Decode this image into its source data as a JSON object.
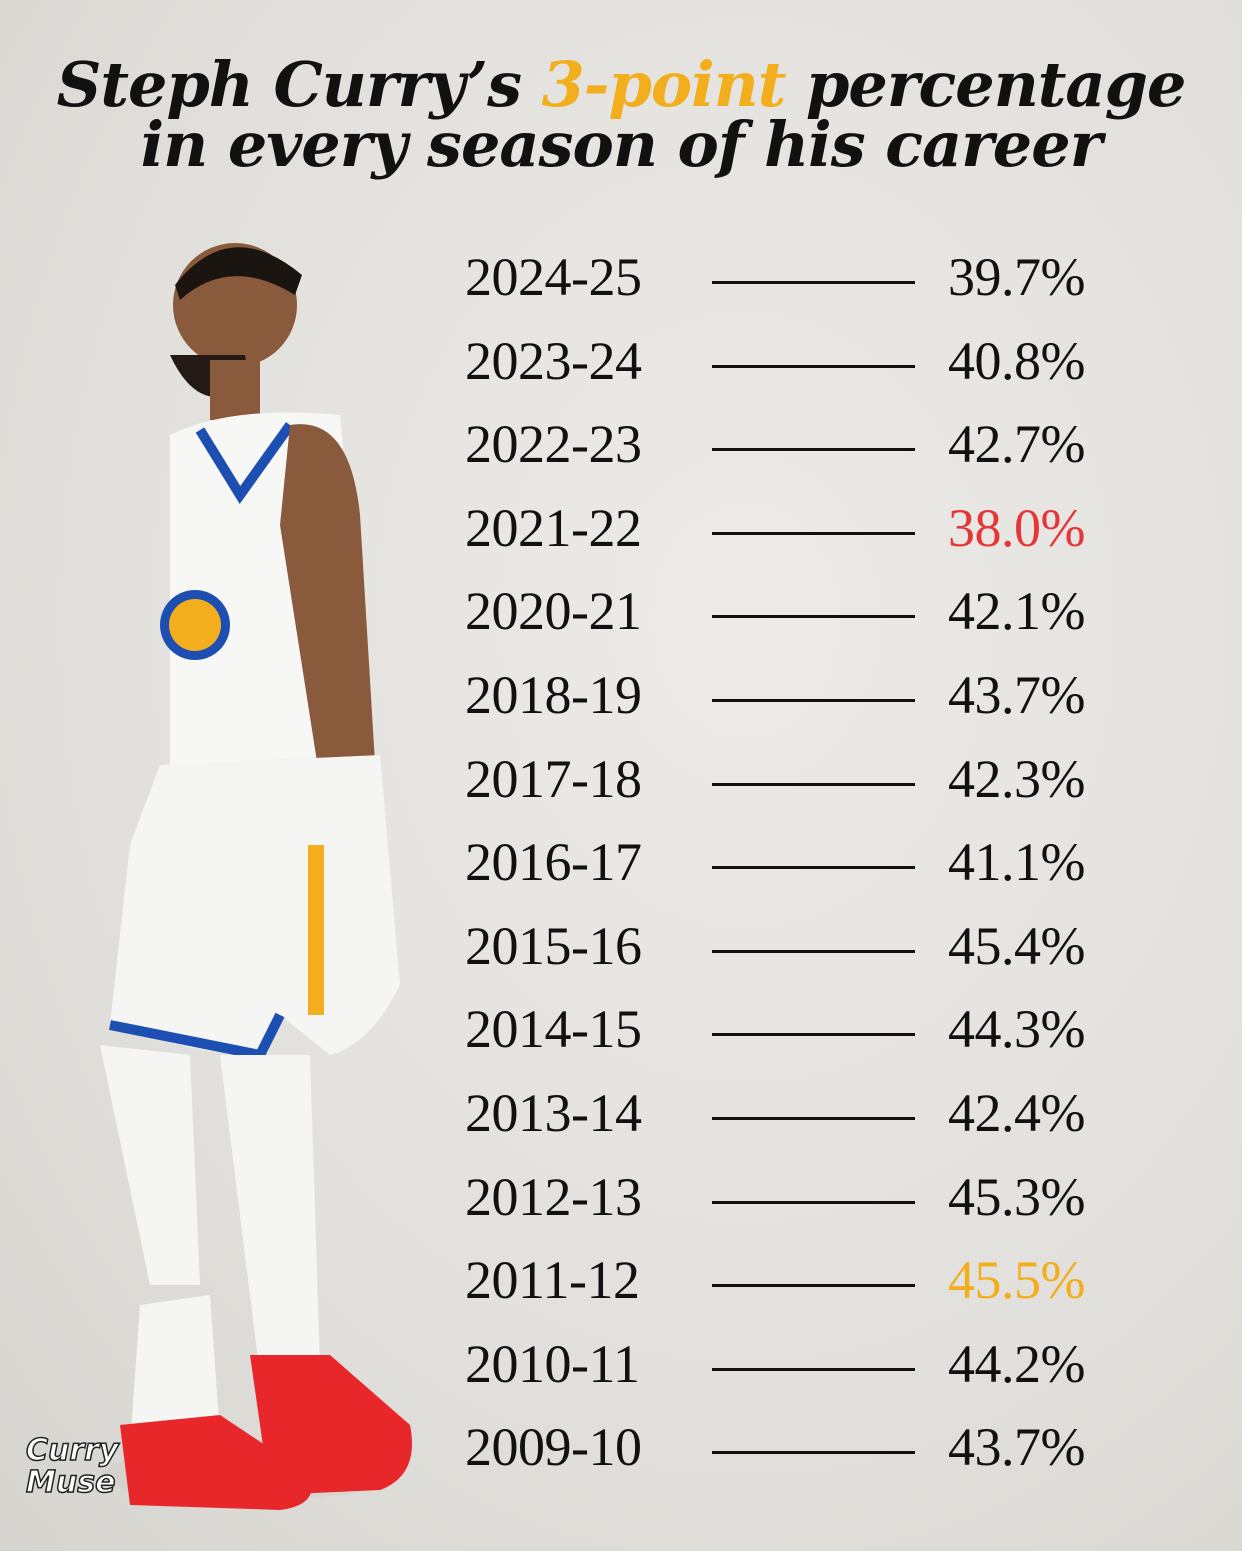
{
  "title": {
    "line1_start": "Steph Curry’s",
    "line1_highlight": "3-point",
    "line1_end": "percentage",
    "line2": "in every season of his career",
    "highlight_color": "#f2ae1c"
  },
  "rows": [
    {
      "season": "2024-25",
      "value": "39.7%",
      "color": "#111111"
    },
    {
      "season": "2023-24",
      "value": "40.8%",
      "color": "#111111"
    },
    {
      "season": "2022-23",
      "value": "42.7%",
      "color": "#111111"
    },
    {
      "season": "2021-22",
      "value": "38.0%",
      "color": "#e5373a"
    },
    {
      "season": "2020-21",
      "value": "42.1%",
      "color": "#111111"
    },
    {
      "season": "2018-19",
      "value": "43.7%",
      "color": "#111111"
    },
    {
      "season": "2017-18",
      "value": "42.3%",
      "color": "#111111"
    },
    {
      "season": "2016-17",
      "value": "41.1%",
      "color": "#111111"
    },
    {
      "season": "2015-16",
      "value": "45.4%",
      "color": "#111111"
    },
    {
      "season": "2014-15",
      "value": "44.3%",
      "color": "#111111"
    },
    {
      "season": "2013-14",
      "value": "42.4%",
      "color": "#111111"
    },
    {
      "season": "2012-13",
      "value": "45.3%",
      "color": "#111111"
    },
    {
      "season": "2011-12",
      "value": "45.5%",
      "color": "#f2ae1c"
    },
    {
      "season": "2010-11",
      "value": "44.2%",
      "color": "#111111"
    },
    {
      "season": "2009-10",
      "value": "43.7%",
      "color": "#111111"
    }
  ],
  "watermark": {
    "line1": "Curry",
    "line2": "Muse"
  }
}
